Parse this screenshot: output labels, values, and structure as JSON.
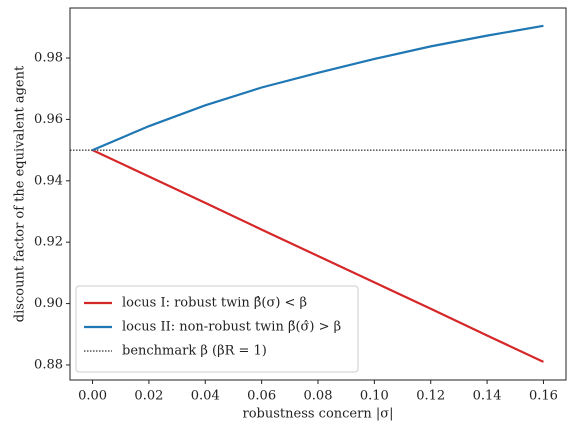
{
  "chart_data": {
    "type": "line",
    "xlabel": "robustness concern |σ|",
    "ylabel": "discount factor of the equivalent agent",
    "x": [
      0,
      0.02,
      0.04,
      0.06,
      0.08,
      0.1,
      0.12,
      0.14,
      0.16
    ],
    "series": [
      {
        "name": "locus I: robust twin β̂(σ) < β",
        "color": "#d62728",
        "values": [
          0.95,
          0.9414,
          0.9328,
          0.9241,
          0.9155,
          0.9069,
          0.8983,
          0.8896,
          0.881
        ]
      },
      {
        "name": "locus II: non-robust twin β̃(σ̂) > β",
        "color": "#1f77b4",
        "values": [
          0.95,
          0.9578,
          0.9646,
          0.9704,
          0.9752,
          0.9797,
          0.9838,
          0.9873,
          0.9905
        ]
      }
    ],
    "hline": {
      "name": "benchmark β (βR = 1)",
      "value": 0.95,
      "color": "#000000"
    },
    "xlim": [
      -0.008,
      0.168
    ],
    "ylim": [
      0.8751,
      0.9963
    ],
    "xticks": [
      {
        "value": 0,
        "label": "0.00"
      },
      0.02,
      0.04,
      0.06,
      0.08,
      {
        "value": 0.1,
        "label": "0.10"
      },
      0.12,
      0.14,
      0.16
    ],
    "yticks": [
      0.88,
      {
        "value": 0.9,
        "label": "0.90"
      },
      0.92,
      0.94,
      0.96,
      0.98
    ],
    "legend": "lower left",
    "grid": false
  }
}
